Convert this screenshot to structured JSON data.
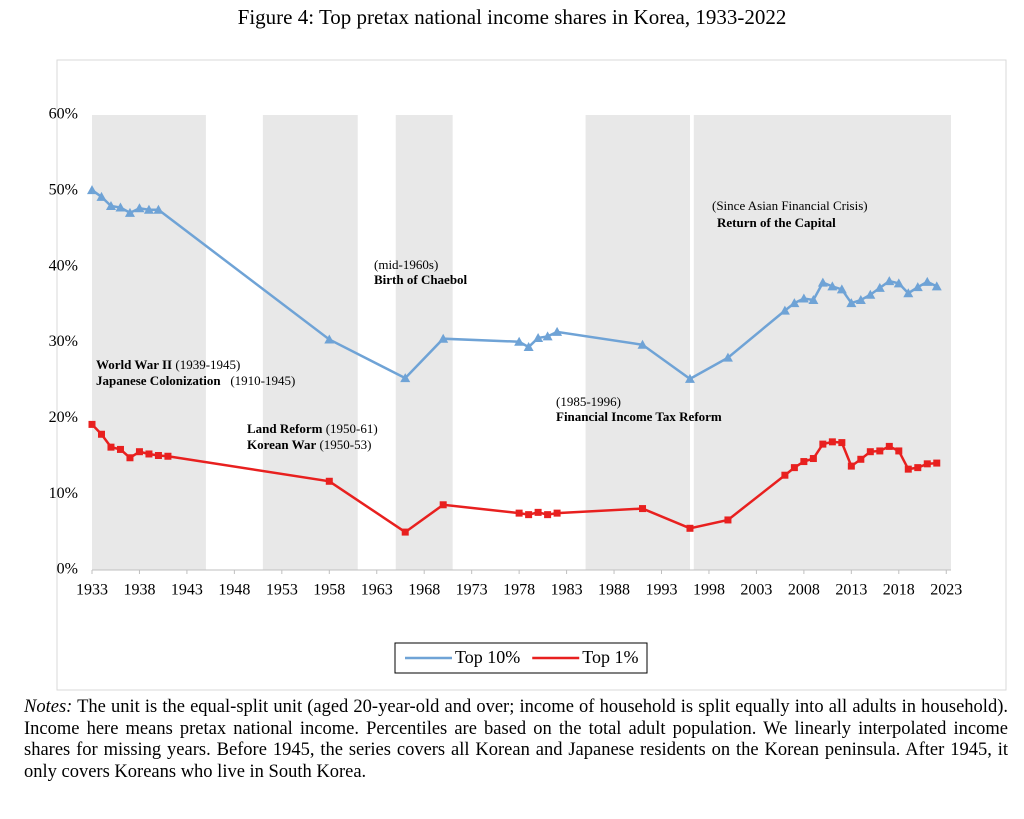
{
  "chart_data": {
    "type": "line",
    "title": "Figure 4: Top pretax national income shares in Korea, 1933-2022",
    "xlim": [
      1933,
      2023.5
    ],
    "xticks": [
      1933,
      1938,
      1943,
      1948,
      1953,
      1958,
      1963,
      1968,
      1973,
      1978,
      1983,
      1988,
      1993,
      1998,
      2003,
      2008,
      2013,
      2018,
      2023
    ],
    "ylim": [
      0,
      60
    ],
    "yticks": [
      {
        "value": 0,
        "label": "0%"
      },
      {
        "value": 10,
        "label": "10%"
      },
      {
        "value": 20,
        "label": "20%"
      },
      {
        "value": 30,
        "label": "30%"
      },
      {
        "value": 40,
        "label": "40%"
      },
      {
        "value": 50,
        "label": "50%"
      },
      {
        "value": 60,
        "label": "60%"
      }
    ],
    "grid": false,
    "shaded_periods": [
      [
        1933,
        1945
      ],
      [
        1951,
        1961
      ],
      [
        1965,
        1971
      ],
      [
        1985,
        1996
      ],
      [
        1996.4,
        2023.5
      ]
    ],
    "shade_color": "#e8e8e8",
    "series": [
      {
        "name": "Top 10%",
        "color": "#6fa3d6",
        "marker": "triangle",
        "x": [
          1933,
          1934,
          1935,
          1936,
          1937,
          1938,
          1939,
          1940,
          1958,
          1966,
          1970,
          1978,
          1979,
          1980,
          1981,
          1982,
          1991,
          1996,
          2000,
          2006,
          2007,
          2008,
          2009,
          2010,
          2011,
          2012,
          2013,
          2014,
          2015,
          2016,
          2017,
          2018,
          2019,
          2020,
          2021,
          2022
        ],
        "values": [
          50.1,
          49.2,
          48.0,
          47.8,
          47.1,
          47.7,
          47.5,
          47.5,
          30.4,
          25.3,
          30.5,
          30.1,
          29.4,
          30.6,
          30.8,
          31.4,
          29.7,
          25.2,
          28.0,
          34.2,
          35.2,
          35.8,
          35.6,
          37.9,
          37.4,
          37.0,
          35.2,
          35.6,
          36.3,
          37.2,
          38.1,
          37.8,
          36.5,
          37.3,
          38.0,
          37.4
        ]
      },
      {
        "name": "Top 1%",
        "color": "#e8201f",
        "marker": "square",
        "x": [
          1933,
          1934,
          1935,
          1936,
          1937,
          1938,
          1939,
          1940,
          1941,
          1958,
          1966,
          1970,
          1978,
          1979,
          1980,
          1981,
          1982,
          1991,
          1996,
          2000,
          2006,
          2007,
          2008,
          2009,
          2010,
          2011,
          2012,
          2013,
          2014,
          2015,
          2016,
          2017,
          2018,
          2019,
          2020,
          2021,
          2022
        ],
        "values": [
          19.2,
          17.9,
          16.2,
          15.9,
          14.8,
          15.6,
          15.3,
          15.1,
          15.0,
          11.7,
          5.0,
          8.6,
          7.5,
          7.3,
          7.6,
          7.3,
          7.5,
          8.1,
          5.5,
          6.6,
          12.5,
          13.5,
          14.3,
          14.7,
          16.6,
          16.9,
          16.8,
          13.7,
          14.6,
          15.6,
          15.7,
          16.3,
          15.7,
          13.3,
          13.5,
          14.0,
          14.1
        ]
      }
    ],
    "annotations": [
      [
        {
          "text": "World War II",
          "bold": true
        },
        {
          "text": " (1939-1945)",
          "bold": false
        }
      ],
      [
        {
          "text": "Japanese Colonization",
          "bold": true
        },
        {
          "text": "   (1910-1945)",
          "bold": false
        }
      ],
      [
        {
          "text": "Land Reform",
          "bold": true
        },
        {
          "text": " (1950-61)",
          "bold": false
        }
      ],
      [
        {
          "text": "Korean War",
          "bold": true
        },
        {
          "text": " (1950-53)",
          "bold": false
        }
      ],
      [
        {
          "text": "(mid-1960s)",
          "bold": false
        }
      ],
      [
        {
          "text": "Birth of Chaebol",
          "bold": true
        }
      ],
      [
        {
          "text": "(1985-1996)",
          "bold": false
        }
      ],
      [
        {
          "text": "Financial Income Tax Reform",
          "bold": true
        }
      ],
      [
        {
          "text": "(Since Asian Financial Crisis)",
          "bold": false
        }
      ],
      [
        {
          "text": "Return of the Capital",
          "bold": true
        }
      ]
    ]
  },
  "notes": {
    "label": "Notes:",
    "text": "The unit is the equal-split unit (aged 20-year-old and over; income of household is split equally into all adults in household). Income here means pretax national income. Percentiles are based on the total adult population. We linearly interpolated income shares for missing years. Before 1945, the series covers all Korean and Japanese residents on the Korean peninsula. After 1945, it only covers Koreans who live in South Korea."
  }
}
